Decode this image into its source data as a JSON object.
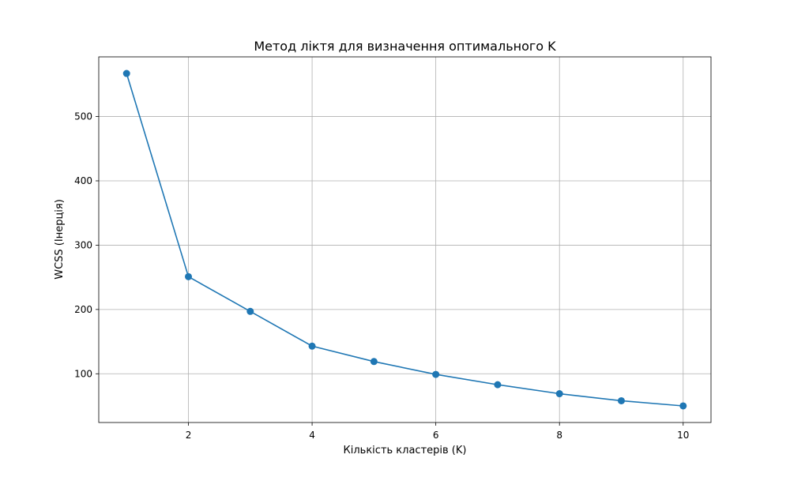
{
  "chart_data": {
    "type": "line",
    "title": "Метод ліктя для визначення оптимального K",
    "xlabel": "Кількість кластерів (K)",
    "ylabel": "WCSS (Інерція)",
    "x": [
      1,
      2,
      3,
      4,
      5,
      6,
      7,
      8,
      9,
      10
    ],
    "series": [
      {
        "values": [
          567,
          251,
          197,
          143,
          119,
          99,
          83,
          69,
          58,
          50
        ]
      }
    ],
    "xlim": [
      0.55,
      10.45
    ],
    "ylim": [
      24.2,
      592.8
    ],
    "xticks": [
      2,
      4,
      6,
      8,
      10
    ],
    "yticks": [
      100,
      200,
      300,
      400,
      500
    ],
    "grid": true,
    "marker": "circle",
    "color": "#1f77b4"
  }
}
